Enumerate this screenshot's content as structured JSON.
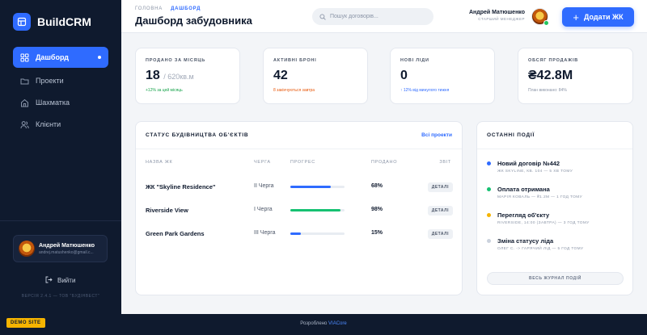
{
  "app": {
    "name": "BuildCRM"
  },
  "sidebar": {
    "items": [
      {
        "label": "Дашборд",
        "icon": "dashboard-icon",
        "active": true
      },
      {
        "label": "Проекти",
        "icon": "folder-icon"
      },
      {
        "label": "Шахматка",
        "icon": "building-icon"
      },
      {
        "label": "Клієнти",
        "icon": "users-icon"
      }
    ],
    "user": {
      "name": "Андрей Матюшенко",
      "email": "andrej.matushenko@gmail.c..."
    },
    "logout_label": "Вийти",
    "version": "ВЕРСІЯ 2.4.1 — ТОВ \"БУДІНВЕСТ\""
  },
  "header": {
    "breadcrumb": {
      "home": "ГОЛОВНА",
      "current": "ДАШБОРД"
    },
    "title": "Дашборд забудовника",
    "search_placeholder": "Пошук договорів...",
    "user_name": "Андрей Матюшенко",
    "user_role": "СТАРШИЙ МЕНЕДЖЕР",
    "add_button": "Додати ЖК"
  },
  "kpis": [
    {
      "label": "ПРОДАНО ЗА МІСЯЦЬ",
      "value": "18",
      "unit": "/ 620кв.м",
      "note": "+12% за цей місяць",
      "note_color": "#16a34a"
    },
    {
      "label": "АКТИВНІ БРОНІ",
      "value": "42",
      "unit": "",
      "note": "8 закінчуються завтра",
      "note_color": "#e8590c"
    },
    {
      "label": "НОВІ ЛІДИ",
      "value": "0",
      "unit": "",
      "note": "↑ 12% від минулого тижня",
      "note_color": "#2f6bff"
    },
    {
      "label": "ОБСЯГ ПРОДАЖІВ",
      "value": "₴42.8M",
      "unit": "",
      "note": "План виконано: 84%",
      "note_color": "#8b95a7"
    }
  ],
  "status": {
    "title": "СТАТУС БУДІВНИЦТВА ОБ'ЄКТІВ",
    "link": "Всі проекти",
    "columns": {
      "name": "НАЗВА ЖК",
      "queue": "ЧЕРГА",
      "progress": "ПРОГРЕС",
      "sold": "ПРОДАНО",
      "report": "ЗВІТ"
    },
    "rows": [
      {
        "name": "ЖК \"Skyline Residence\"",
        "queue": "II Черга",
        "progress": 0.75,
        "color": "#2f6bff",
        "sold": "68%",
        "action": "ДЕТАЛІ"
      },
      {
        "name": "Riverside View",
        "queue": "I Черга",
        "progress": 0.92,
        "color": "#16c172",
        "sold": "98%",
        "action": "ДЕТАЛІ"
      },
      {
        "name": "Green Park Gardens",
        "queue": "III Черга",
        "progress": 0.2,
        "color": "#2f6bff",
        "sold": "15%",
        "action": "ДЕТАЛІ"
      }
    ]
  },
  "events": {
    "title": "ОСТАННІ ПОДІЇ",
    "items": [
      {
        "title": "Новий договір №442",
        "meta": "ЖК SKYLINE, КВ. 104 — 5 ХВ ТОМУ",
        "color": "#2f6bff"
      },
      {
        "title": "Оплата отримана",
        "meta": "МАРІЯ КОВАЛЬ — ₴1.2М — 1 ГОД ТОМУ",
        "color": "#16c172"
      },
      {
        "title": "Перегляд об'єкту",
        "meta": "RIVERSIDE, 14:00 (ЗАВТРА) — 3 ГОД ТОМУ",
        "color": "#f5b400"
      },
      {
        "title": "Зміна статусу ліда",
        "meta": "ОЛЕГ С. -> ГАРЯЧИЙ ЛІД — 5 ГОД ТОМУ",
        "color": "#cbd2dd"
      }
    ],
    "journal_button": "ВЕСЬ ЖУРНАЛ ПОДІЙ"
  },
  "footer": {
    "badge": "DEMO SITE",
    "credit_prefix": "Розроблено",
    "credit_link": "VIACore"
  }
}
